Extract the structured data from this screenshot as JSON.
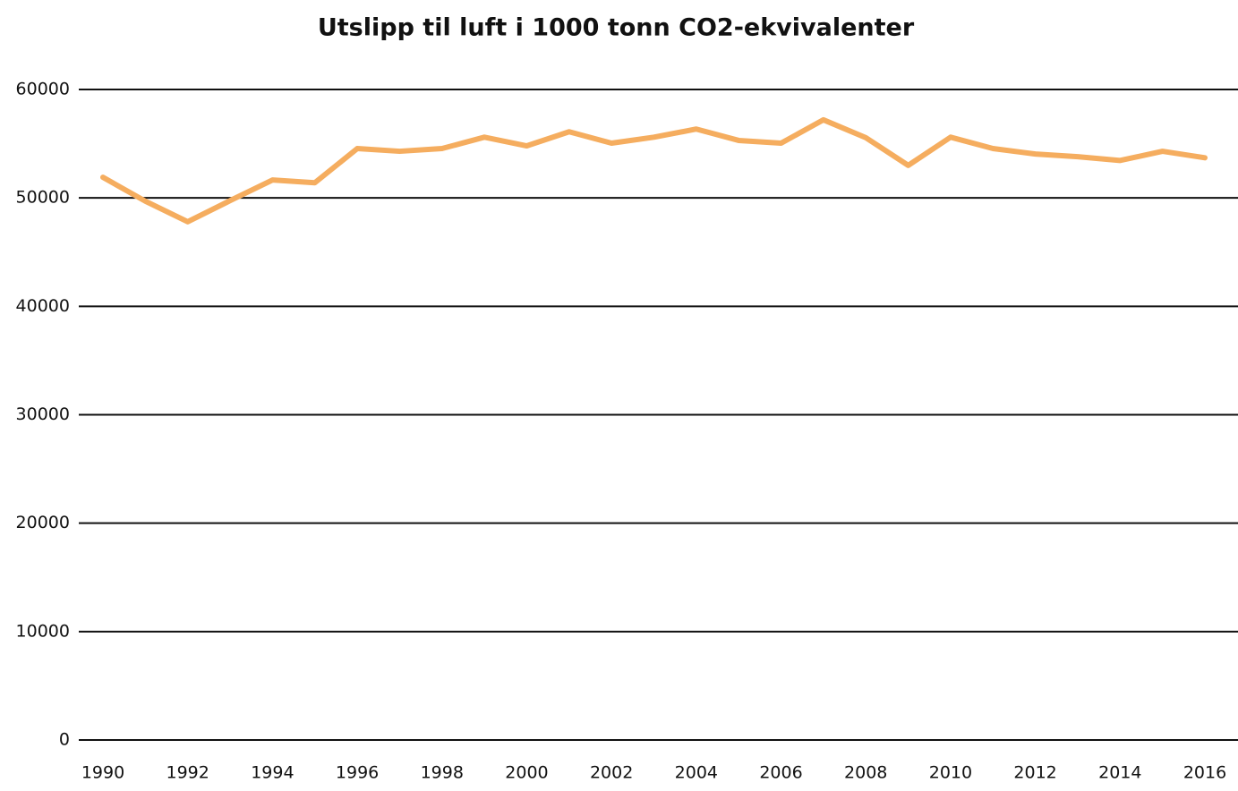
{
  "chart_data": {
    "type": "line",
    "title": "Utslipp til luft i 1000 tonn CO2-ekvivalenter",
    "x": [
      1990,
      1991,
      1992,
      1993,
      1994,
      1995,
      1996,
      1997,
      1998,
      1999,
      2000,
      2001,
      2002,
      2003,
      2004,
      2005,
      2006,
      2007,
      2008,
      2009,
      2010,
      2011,
      2012,
      2013,
      2014,
      2015,
      2016
    ],
    "series": [
      {
        "name": "Utslipp",
        "color": "#f5ad5f",
        "values": [
          51900,
          49700,
          47800,
          49750,
          51650,
          51400,
          54550,
          54300,
          54550,
          55600,
          54800,
          56100,
          55050,
          55600,
          56350,
          55300,
          55050,
          57200,
          55550,
          53000,
          55600,
          54550,
          54050,
          53800,
          53450,
          54300,
          53700
        ]
      }
    ],
    "xlim": [
      1990,
      2016
    ],
    "xticks": [
      1990,
      1992,
      1994,
      1996,
      1998,
      2000,
      2002,
      2004,
      2006,
      2008,
      2010,
      2012,
      2014,
      2016
    ],
    "ylim": [
      0,
      60000
    ],
    "yticks": [
      0,
      10000,
      20000,
      30000,
      40000,
      50000,
      60000
    ],
    "grid": true
  }
}
